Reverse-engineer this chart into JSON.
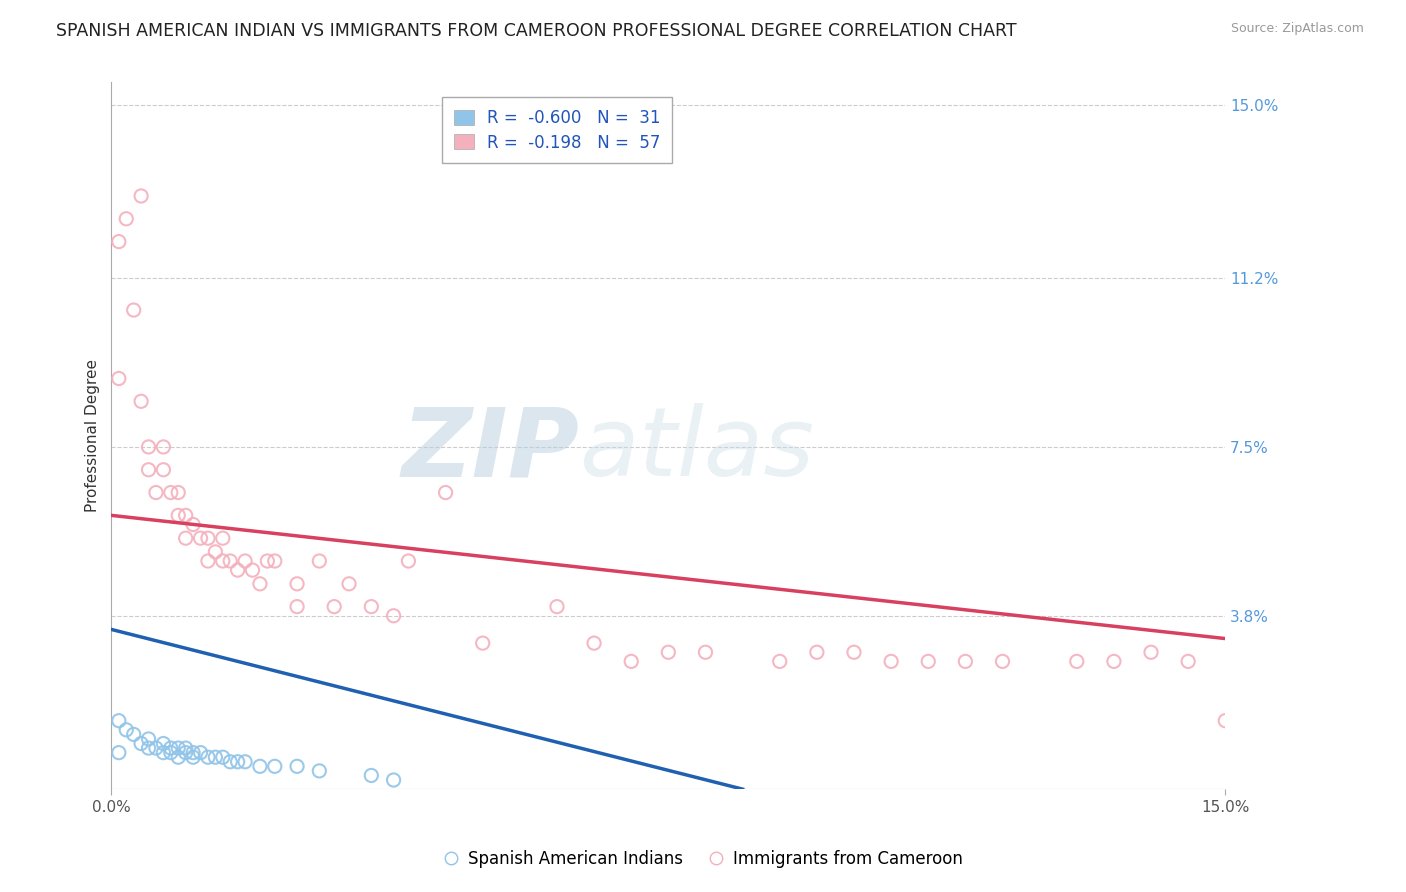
{
  "title": "SPANISH AMERICAN INDIAN VS IMMIGRANTS FROM CAMEROON PROFESSIONAL DEGREE CORRELATION CHART",
  "source": "Source: ZipAtlas.com",
  "ylabel": "Professional Degree",
  "y_tick_values": [
    0.038,
    0.075,
    0.112,
    0.15
  ],
  "y_tick_labels": [
    "3.8%",
    "7.5%",
    "11.2%",
    "15.0%"
  ],
  "xlim": [
    0.0,
    0.15
  ],
  "ylim": [
    0.0,
    0.155
  ],
  "legend1_label": "R =  -0.600   N =  31",
  "legend2_label": "R =  -0.198   N =  57",
  "legend1_series": "Spanish American Indians",
  "legend2_series": "Immigrants from Cameroon",
  "watermark_zip": "ZIP",
  "watermark_atlas": "atlas",
  "background_color": "#ffffff",
  "grid_color": "#cccccc",
  "blue_scatter_x": [
    0.001,
    0.001,
    0.002,
    0.003,
    0.004,
    0.005,
    0.005,
    0.006,
    0.007,
    0.007,
    0.008,
    0.008,
    0.009,
    0.009,
    0.01,
    0.01,
    0.011,
    0.011,
    0.012,
    0.013,
    0.014,
    0.015,
    0.016,
    0.017,
    0.018,
    0.02,
    0.022,
    0.025,
    0.028,
    0.035,
    0.038
  ],
  "blue_scatter_y": [
    0.015,
    0.008,
    0.013,
    0.012,
    0.01,
    0.009,
    0.011,
    0.009,
    0.01,
    0.008,
    0.009,
    0.008,
    0.009,
    0.007,
    0.008,
    0.009,
    0.008,
    0.007,
    0.008,
    0.007,
    0.007,
    0.007,
    0.006,
    0.006,
    0.006,
    0.005,
    0.005,
    0.005,
    0.004,
    0.003,
    0.002
  ],
  "pink_scatter_x": [
    0.001,
    0.001,
    0.002,
    0.003,
    0.004,
    0.004,
    0.005,
    0.005,
    0.006,
    0.007,
    0.007,
    0.008,
    0.009,
    0.009,
    0.01,
    0.01,
    0.011,
    0.012,
    0.013,
    0.013,
    0.014,
    0.015,
    0.015,
    0.016,
    0.017,
    0.018,
    0.019,
    0.02,
    0.021,
    0.022,
    0.025,
    0.025,
    0.028,
    0.03,
    0.032,
    0.035,
    0.038,
    0.04,
    0.045,
    0.05,
    0.06,
    0.065,
    0.07,
    0.075,
    0.08,
    0.09,
    0.095,
    0.1,
    0.105,
    0.11,
    0.115,
    0.12,
    0.13,
    0.135,
    0.14,
    0.145,
    0.15
  ],
  "pink_scatter_y": [
    0.09,
    0.12,
    0.125,
    0.105,
    0.085,
    0.13,
    0.07,
    0.075,
    0.065,
    0.07,
    0.075,
    0.065,
    0.06,
    0.065,
    0.055,
    0.06,
    0.058,
    0.055,
    0.05,
    0.055,
    0.052,
    0.05,
    0.055,
    0.05,
    0.048,
    0.05,
    0.048,
    0.045,
    0.05,
    0.05,
    0.045,
    0.04,
    0.05,
    0.04,
    0.045,
    0.04,
    0.038,
    0.05,
    0.065,
    0.032,
    0.04,
    0.032,
    0.028,
    0.03,
    0.03,
    0.028,
    0.03,
    0.03,
    0.028,
    0.028,
    0.028,
    0.028,
    0.028,
    0.028,
    0.03,
    0.028,
    0.015
  ],
  "blue_line": [
    [
      0.0,
      0.035
    ],
    [
      0.085,
      0.0
    ]
  ],
  "pink_line": [
    [
      0.0,
      0.06
    ],
    [
      0.15,
      0.033
    ]
  ],
  "blue_color": "#90c4e8",
  "pink_color": "#f4b0bc",
  "blue_line_color": "#2060b0",
  "pink_line_color": "#d84060",
  "title_fontsize": 12.5,
  "axis_label_fontsize": 11,
  "tick_fontsize": 11,
  "legend_fontsize": 12,
  "scatter_size": 90,
  "scatter_lw": 1.5
}
